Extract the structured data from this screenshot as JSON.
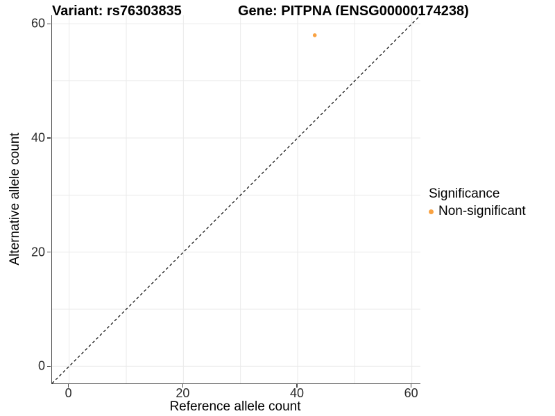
{
  "chart_data": {
    "type": "scatter",
    "title_left": "Variant: rs76303835",
    "title_right": "Gene: PITPNA (ENSG00000174238)",
    "xlabel": "Reference allele count",
    "ylabel": "Alternative allele count",
    "xlim": [
      -3,
      61.5
    ],
    "ylim": [
      -3,
      61.5
    ],
    "x_ticks": [
      0,
      20,
      40,
      60
    ],
    "y_ticks": [
      0,
      20,
      40,
      60
    ],
    "gridlines": [
      0,
      10,
      20,
      30,
      40,
      50,
      60
    ],
    "grid": true,
    "points": [
      {
        "x": 43,
        "y": 58,
        "series": "Non-significant"
      }
    ],
    "identity_line": {
      "style": "dashed",
      "from": [
        -3,
        -3
      ],
      "to": [
        61.5,
        61.5
      ]
    },
    "legend": {
      "position": "right",
      "title": "Significance",
      "entries": [
        {
          "label": "Non-significant",
          "color": "#F9A242"
        }
      ]
    },
    "colors": {
      "point": "#F9A242",
      "grid": "#EAEAEA",
      "axis_line": "#4A4A4A",
      "tick_text": "#2B2B2B",
      "dashed_line": "#000000",
      "background": "#FFFFFF"
    }
  }
}
